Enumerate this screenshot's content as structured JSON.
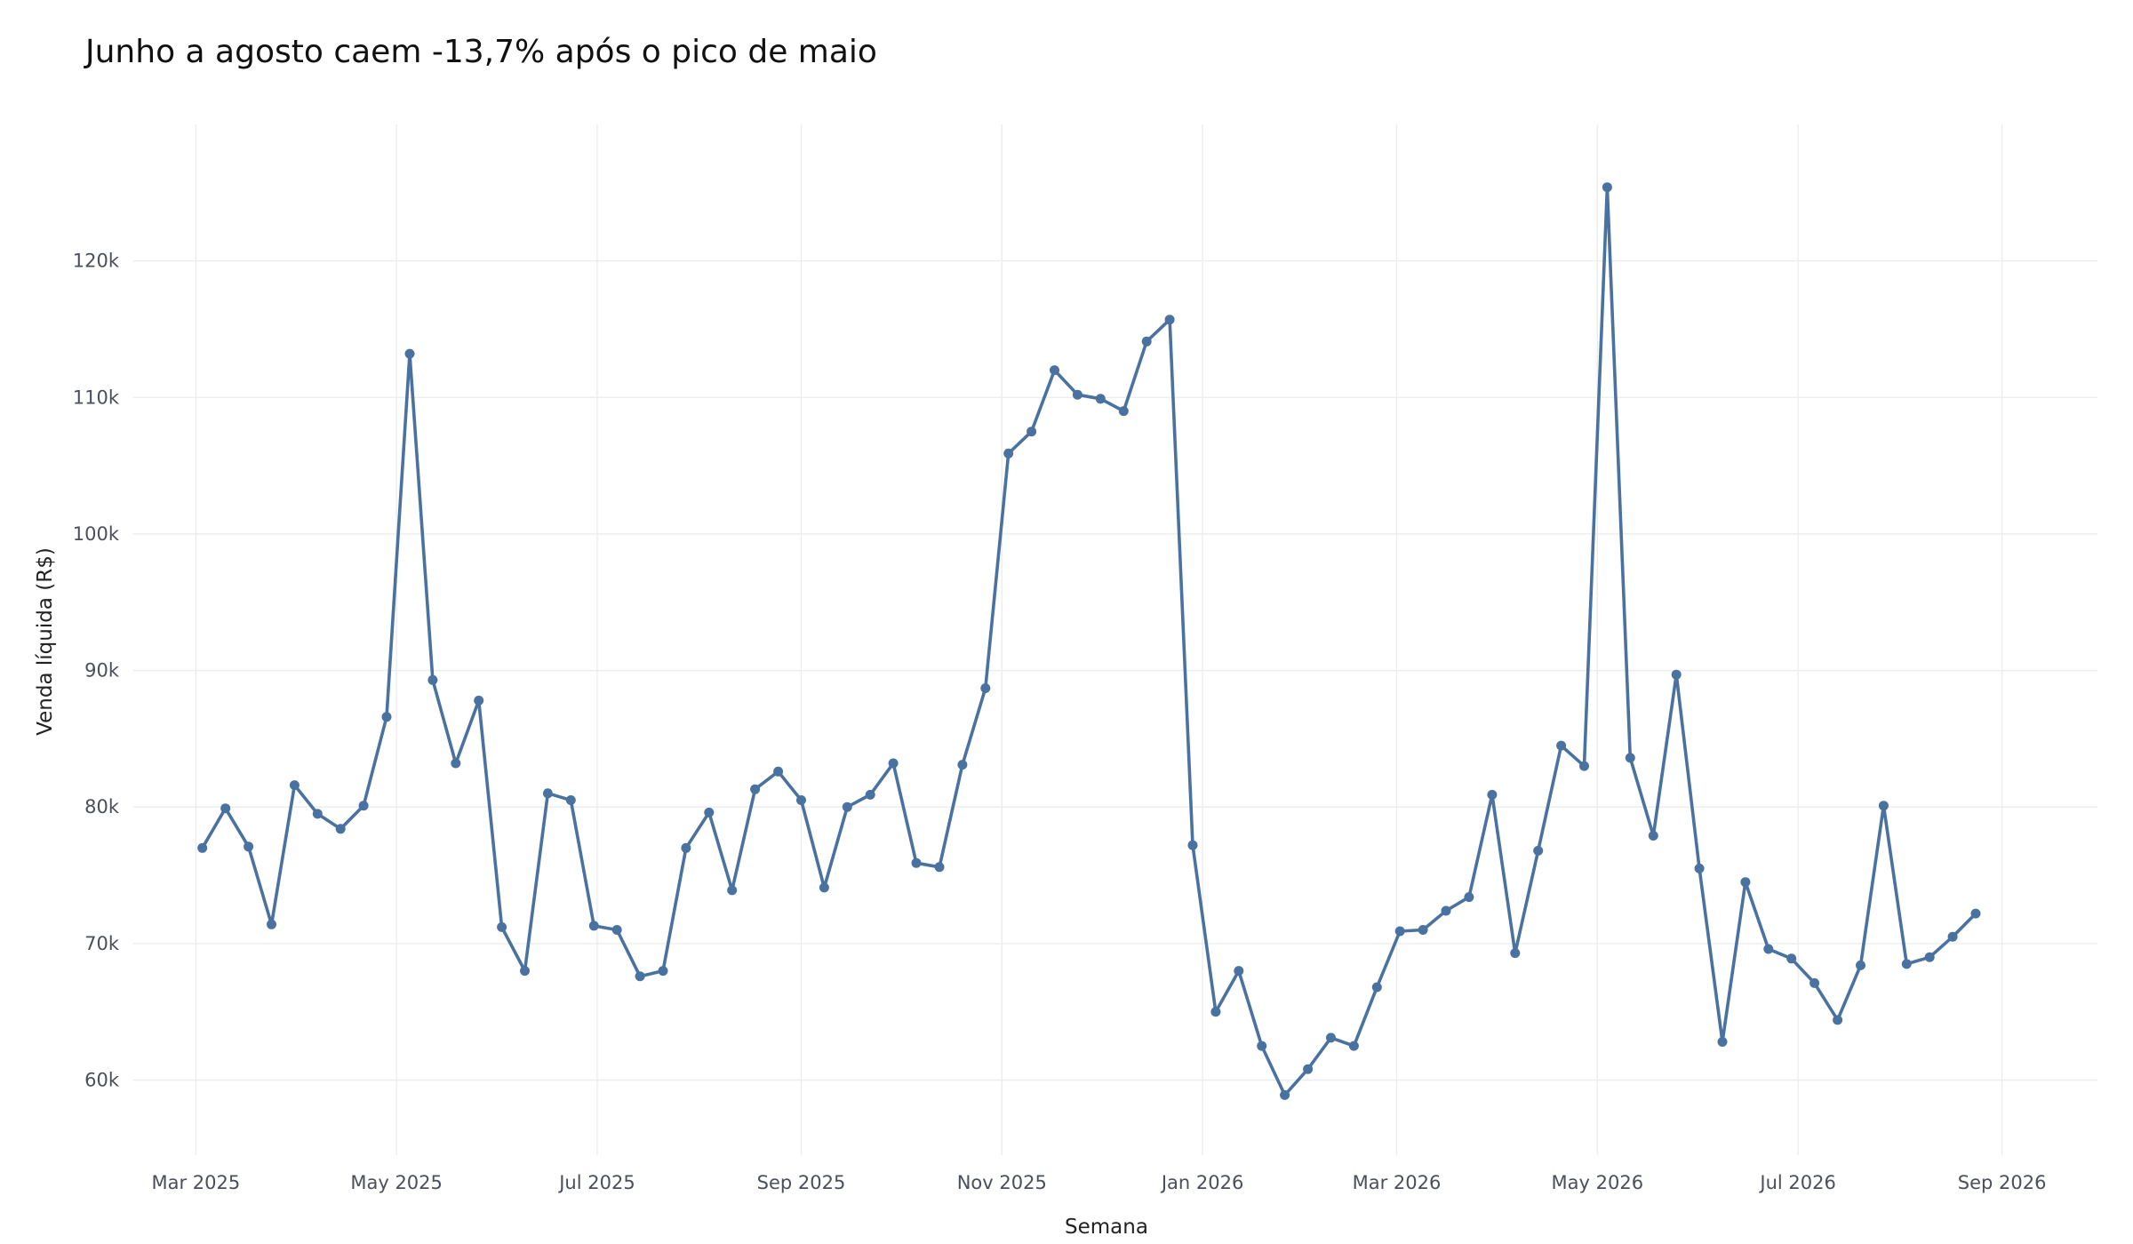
{
  "chart_data": {
    "type": "line",
    "title": "Junho a agosto caem -13,7% após o pico de maio",
    "xlabel": "Semana",
    "ylabel": "Venda líquida (R$)",
    "ylim": [
      54500,
      130000
    ],
    "y_ticks": [
      {
        "value": 60000,
        "label": "60k"
      },
      {
        "value": 70000,
        "label": "70k"
      },
      {
        "value": 80000,
        "label": "80k"
      },
      {
        "value": 90000,
        "label": "90k"
      },
      {
        "value": 100000,
        "label": "100k"
      },
      {
        "value": 110000,
        "label": "110k"
      },
      {
        "value": 120000,
        "label": "120k"
      }
    ],
    "xlim": [
      "2025-02-10",
      "2026-09-30"
    ],
    "x_ticks": [
      {
        "value": "2025-03-01",
        "label": "Mar 2025"
      },
      {
        "value": "2025-05-01",
        "label": "May 2025"
      },
      {
        "value": "2025-07-01",
        "label": "Jul 2025"
      },
      {
        "value": "2025-09-01",
        "label": "Sep 2025"
      },
      {
        "value": "2025-11-01",
        "label": "Nov 2025"
      },
      {
        "value": "2026-01-01",
        "label": "Jan 2026"
      },
      {
        "value": "2026-03-01",
        "label": "Mar 2026"
      },
      {
        "value": "2026-05-01",
        "label": "May 2026"
      },
      {
        "value": "2026-07-01",
        "label": "Jul 2026"
      },
      {
        "value": "2026-09-01",
        "label": "Sep 2026"
      }
    ],
    "grid": true,
    "line_color": "#4a72a0",
    "series": [
      {
        "x": [
          "2025-03-03",
          "2025-03-10",
          "2025-03-17",
          "2025-03-24",
          "2025-03-31",
          "2025-04-07",
          "2025-04-14",
          "2025-04-21",
          "2025-04-28",
          "2025-05-05",
          "2025-05-12",
          "2025-05-19",
          "2025-05-26",
          "2025-06-02",
          "2025-06-09",
          "2025-06-16",
          "2025-06-23",
          "2025-06-30",
          "2025-07-07",
          "2025-07-14",
          "2025-07-21",
          "2025-07-28",
          "2025-08-04",
          "2025-08-11",
          "2025-08-18",
          "2025-08-25",
          "2025-09-01",
          "2025-09-08",
          "2025-09-15",
          "2025-09-22",
          "2025-09-29",
          "2025-10-06",
          "2025-10-13",
          "2025-10-20",
          "2025-10-27",
          "2025-11-03",
          "2025-11-10",
          "2025-11-17",
          "2025-11-24",
          "2025-12-01",
          "2025-12-08",
          "2025-12-15",
          "2025-12-22",
          "2025-12-29",
          "2026-01-05",
          "2026-01-12",
          "2026-01-19",
          "2026-01-26",
          "2026-02-02",
          "2026-02-09",
          "2026-02-16",
          "2026-02-23",
          "2026-03-02",
          "2026-03-09",
          "2026-03-16",
          "2026-03-23",
          "2026-03-30",
          "2026-04-06",
          "2026-04-13",
          "2026-04-20",
          "2026-04-27",
          "2026-05-04",
          "2026-05-11",
          "2026-05-18",
          "2026-05-25",
          "2026-06-01",
          "2026-06-08",
          "2026-06-15",
          "2026-06-22",
          "2026-06-29",
          "2026-07-06",
          "2026-07-13",
          "2026-07-20",
          "2026-07-27",
          "2026-08-03",
          "2026-08-10",
          "2026-08-17",
          "2026-08-24"
        ],
        "values": [
          77000,
          79900,
          77100,
          71400,
          81600,
          79500,
          78400,
          80100,
          86600,
          113200,
          89300,
          83200,
          87800,
          71200,
          68000,
          81000,
          80500,
          71300,
          71000,
          67600,
          68000,
          77000,
          79600,
          73900,
          81300,
          82600,
          80500,
          74100,
          80000,
          80900,
          83200,
          75900,
          75600,
          83100,
          88700,
          105900,
          107500,
          112000,
          110200,
          109900,
          109000,
          114100,
          115700,
          77200,
          65000,
          68000,
          62500,
          58900,
          60800,
          63100,
          62500,
          66800,
          70900,
          71000,
          72400,
          73400,
          80900,
          69300,
          76800,
          84500,
          83000,
          125400,
          83600,
          77900,
          89700,
          75500,
          62800,
          74500,
          69600,
          68900,
          67100,
          64400,
          68400,
          80100,
          68500,
          69000,
          70500,
          72200
        ]
      }
    ]
  }
}
